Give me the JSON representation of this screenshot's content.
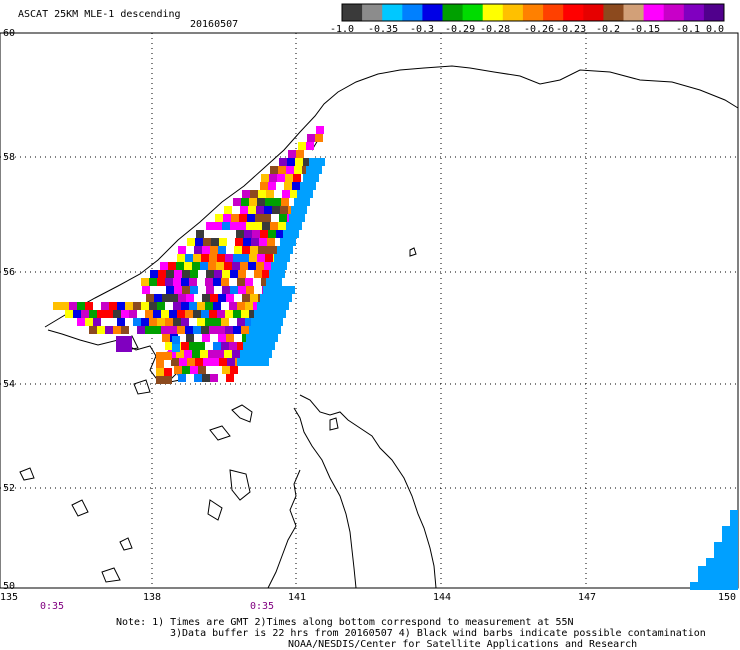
{
  "header": {
    "title": "ASCAT 25KM MLE-1 descending",
    "date": "20160507"
  },
  "colorbar": {
    "colors": [
      "#3a3a3a",
      "#8c8c8c",
      "#00c8ff",
      "#0080ff",
      "#0000e6",
      "#00a000",
      "#00dc00",
      "#ffff00",
      "#ffc000",
      "#ff8000",
      "#ff4000",
      "#ff0000",
      "#e60000",
      "#8c4a1e",
      "#d2a078",
      "#ff00ff",
      "#c800c8",
      "#8000c0",
      "#50008c"
    ],
    "labels": [
      "-1.0",
      "-0.35",
      "-0.3",
      "-0.29",
      "-0.28",
      "-0.26",
      "-0.23",
      "-0.2",
      "-0.15",
      "-0.1",
      "0.0"
    ]
  },
  "axes": {
    "lat_labels": [
      "60",
      "58",
      "56",
      "54",
      "52",
      "50"
    ],
    "lon_labels": [
      "135",
      "138",
      "141",
      "144",
      "147",
      "150"
    ]
  },
  "time_labels": [
    "0:35",
    "0:35"
  ],
  "notes": [
    "Note: 1) Times are GMT 2)Times along bottom correspond to measurement at 55N",
    "3)Data buffer is 22 hrs from 20160507 4) Black wind barbs indicate possible contamination",
    "NOAA/NESDIS/Center for Satellite Applications and Research"
  ]
}
